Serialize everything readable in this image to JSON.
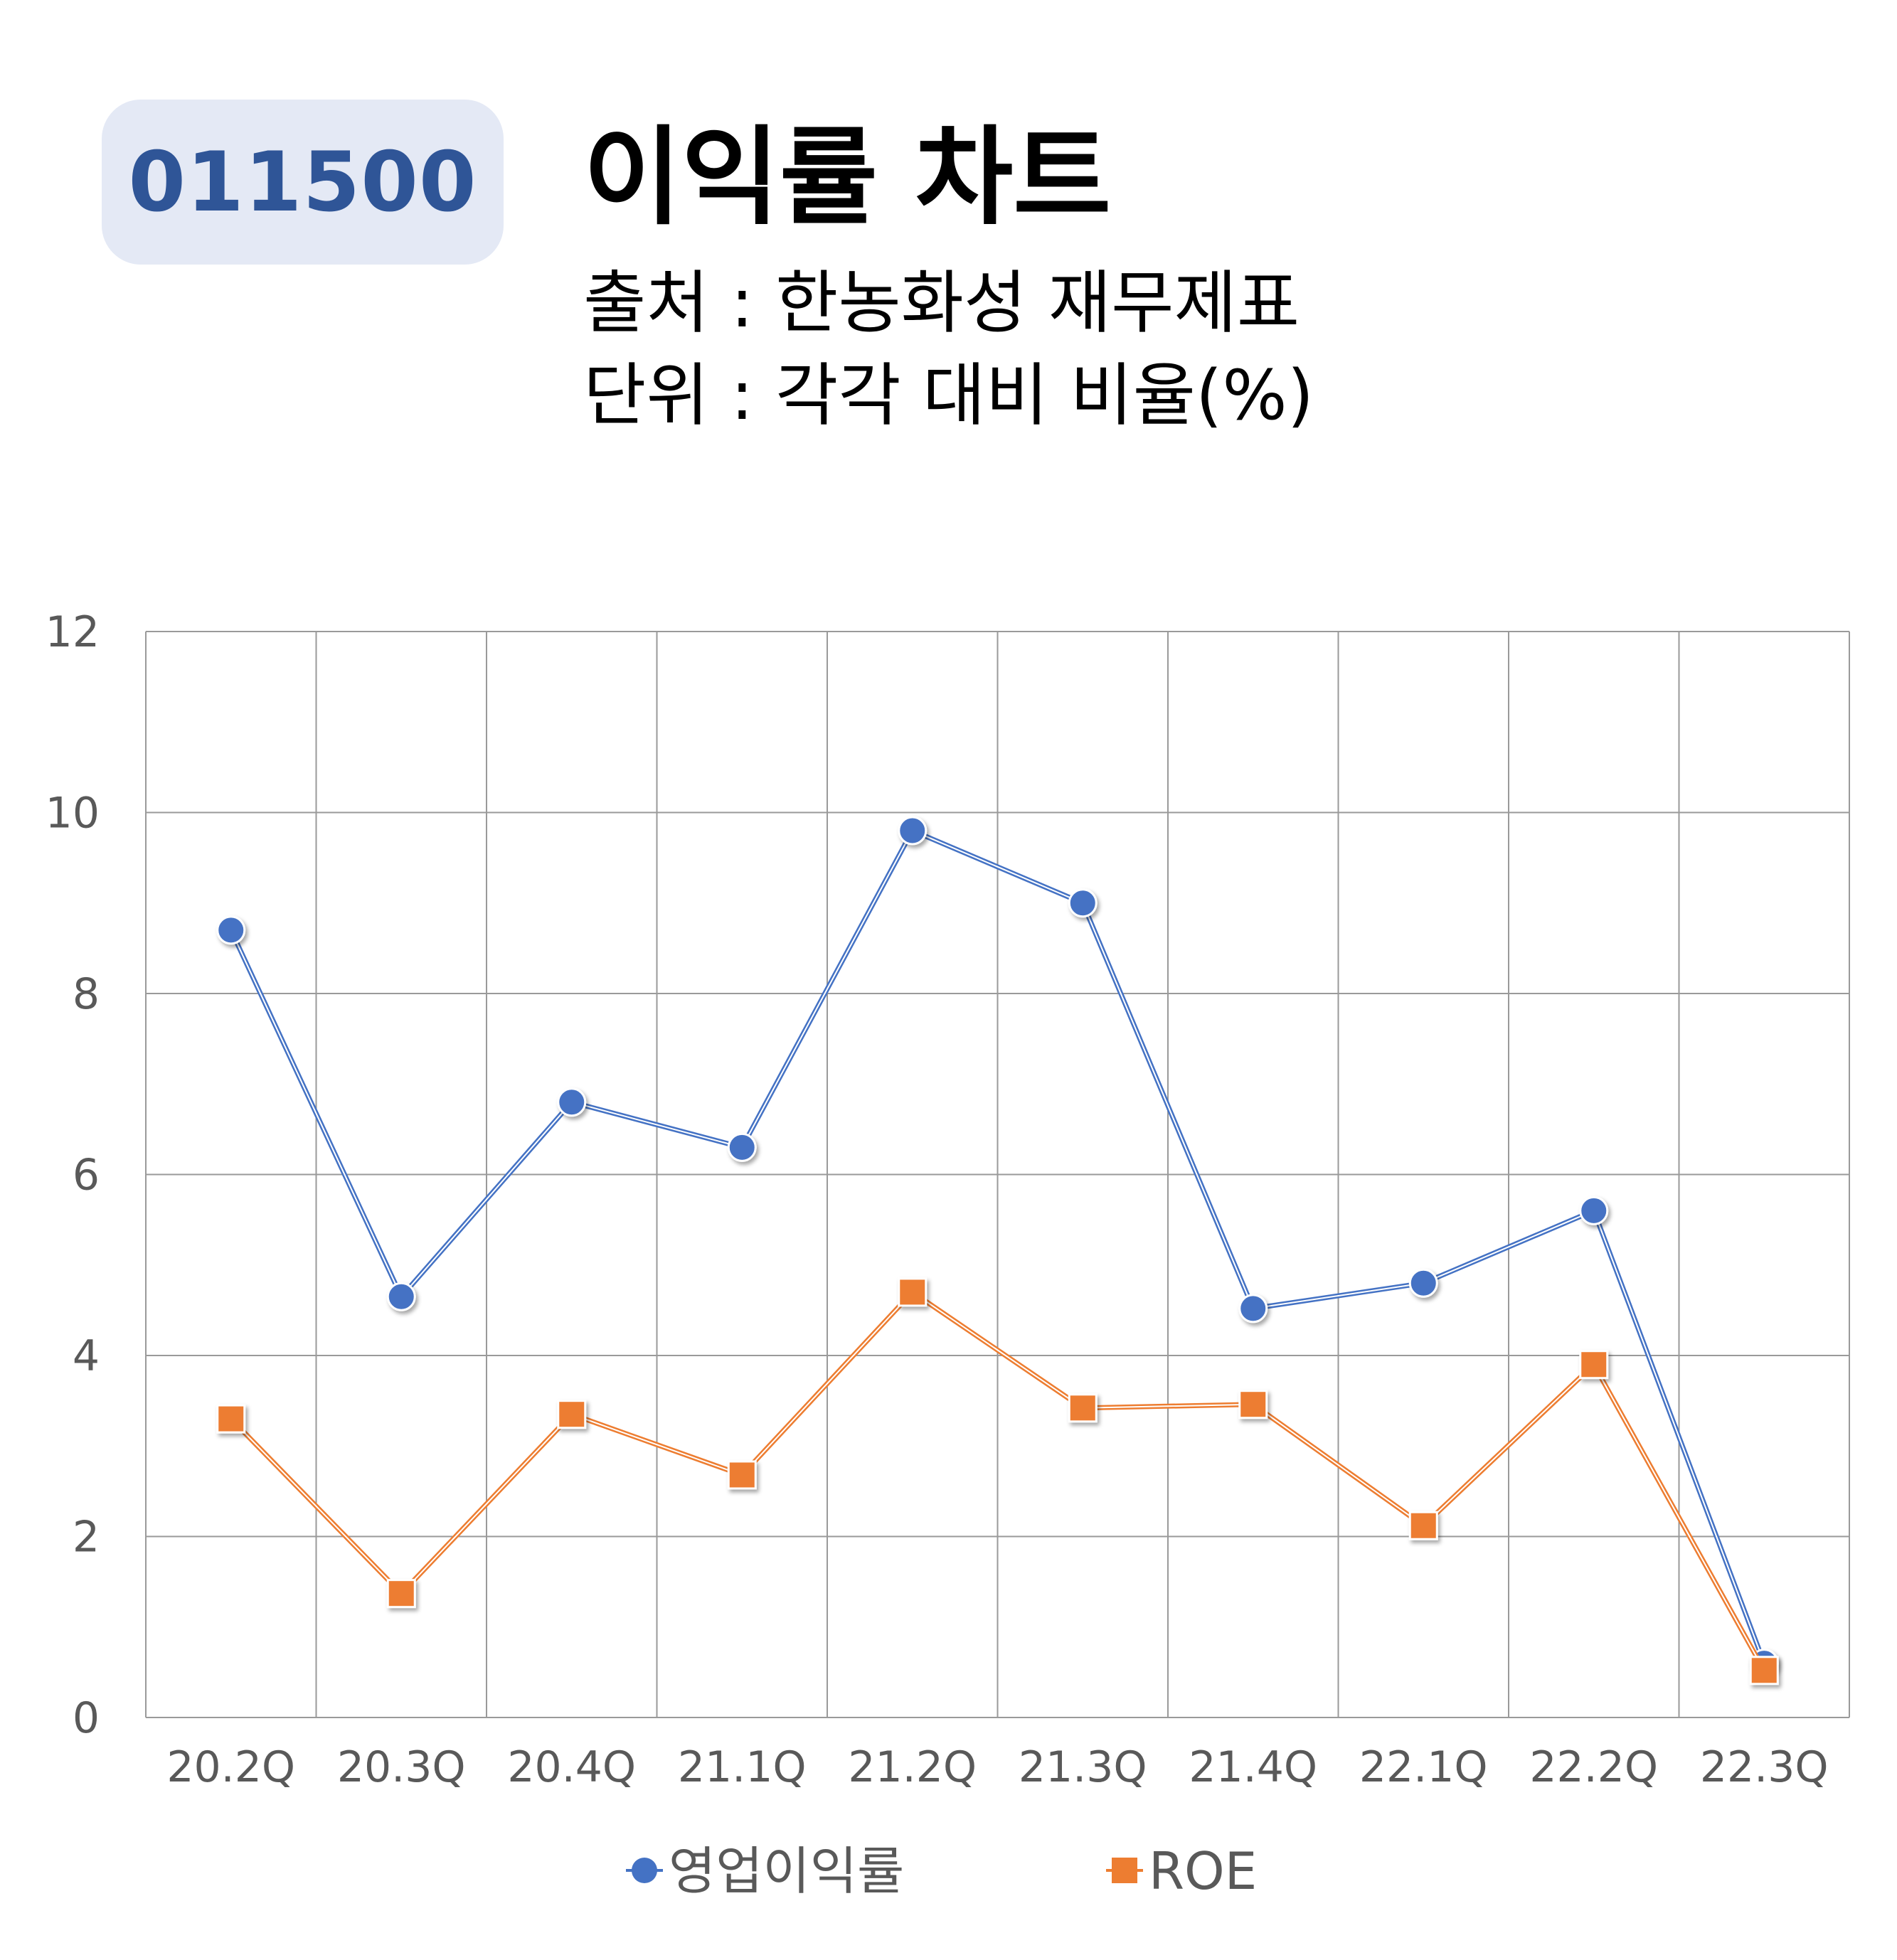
{
  "header": {
    "ticker": "011500",
    "title": "이익률 차트",
    "source_line": "출처 : 한농화성 재무제표",
    "unit_line": "단위 : 각각 대비 비율(%)"
  },
  "colors": {
    "series1": "#4472c4",
    "series2": "#ed7d31",
    "grid": "#9a9a9a",
    "axis_text": "#595959",
    "badge_bg": "#e4e9f5",
    "badge_text": "#2f5597"
  },
  "chart_data": {
    "type": "line",
    "title": "이익률 차트",
    "categories": [
      "20.2Q",
      "20.3Q",
      "20.4Q",
      "21.1Q",
      "21.2Q",
      "21.3Q",
      "21.4Q",
      "22.1Q",
      "22.2Q",
      "22.3Q"
    ],
    "series": [
      {
        "name": "영업이익률",
        "marker": "circle",
        "color": "#4472c4",
        "values": [
          8.7,
          4.65,
          6.8,
          6.3,
          9.8,
          9.0,
          4.52,
          4.8,
          5.6,
          0.6
        ]
      },
      {
        "name": "ROE",
        "marker": "square",
        "color": "#ed7d31",
        "values": [
          3.3,
          1.37,
          3.35,
          2.68,
          4.7,
          3.42,
          3.46,
          2.12,
          3.9,
          0.52
        ]
      }
    ],
    "yticks": [
      "0",
      "2",
      "4",
      "6",
      "8",
      "10",
      "12"
    ],
    "ylim": [
      0,
      12
    ],
    "grid": true,
    "legend": "bottom"
  }
}
